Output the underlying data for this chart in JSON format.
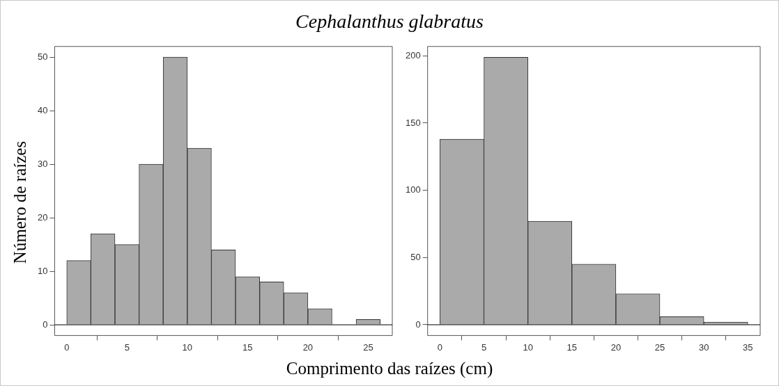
{
  "chart_data": [
    {
      "type": "histogram",
      "title": "Cephalanthus glabratus",
      "ylabel": "Número de raízes",
      "xlabel": "Comprimento das raízes (cm)",
      "bins": [
        0,
        2,
        4,
        6,
        8,
        10,
        12,
        14,
        16,
        18,
        20,
        22,
        24,
        26
      ],
      "values": [
        12,
        17,
        15,
        30,
        50,
        33,
        14,
        9,
        8,
        6,
        3,
        0,
        1
      ],
      "color": "#aaaaaa",
      "xlim": [
        -1,
        27
      ],
      "ylim": [
        -2,
        52
      ],
      "xticks": [
        0,
        5,
        10,
        15,
        20,
        25
      ],
      "yticks": [
        0,
        10,
        20,
        30,
        40,
        50
      ],
      "grid": false,
      "ref_lines": [
        {
          "axis": "y",
          "value": 0,
          "color": "#000000"
        }
      ]
    },
    {
      "type": "histogram",
      "bins": [
        0,
        5,
        10,
        15,
        20,
        25,
        30,
        35
      ],
      "values": [
        138,
        199,
        77,
        45,
        23,
        6,
        2
      ],
      "color": "#aaaaaa",
      "xlim": [
        -1.4,
        36.4
      ],
      "ylim": [
        -8,
        207
      ],
      "xticks": [
        0,
        5,
        10,
        15,
        20,
        25,
        30,
        35
      ],
      "yticks": [
        0,
        50,
        100,
        150,
        200
      ],
      "grid": false,
      "ref_lines": [
        {
          "axis": "y",
          "value": 0,
          "color": "#000000"
        }
      ]
    }
  ]
}
